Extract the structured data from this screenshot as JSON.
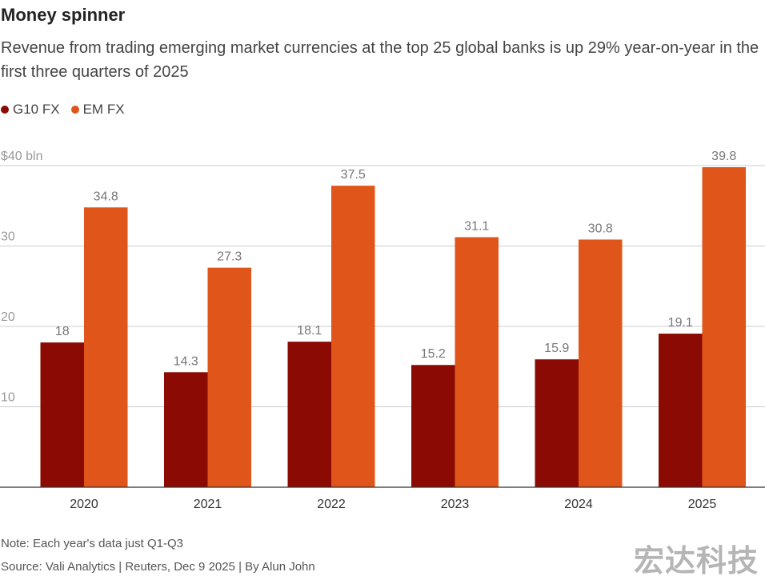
{
  "title": "Money spinner",
  "subtitle": "Revenue from trading emerging market currencies at the top 25 global banks is up 29% year-on-year in the first three quarters of 2025",
  "note": "Note: Each year's data just Q1-Q3",
  "source": "Source: Vali Analytics | Reuters, Dec 9 2025 | By Alun John",
  "watermark": "宏达科技",
  "chart_data": {
    "type": "bar",
    "categories": [
      "2020",
      "2021",
      "2022",
      "2023",
      "2024",
      "2025"
    ],
    "series": [
      {
        "name": "G10 FX",
        "color": "#8b0a03",
        "values": [
          18,
          14.3,
          18.1,
          15.2,
          15.9,
          19.1
        ],
        "labels": [
          "18",
          "14.3",
          "18.1",
          "15.2",
          "15.9",
          "19.1"
        ]
      },
      {
        "name": "EM FX",
        "color": "#e0561a",
        "values": [
          34.8,
          27.3,
          37.5,
          31.1,
          30.8,
          39.8
        ],
        "labels": [
          "34.8",
          "27.3",
          "37.5",
          "31.1",
          "30.8",
          "39.8"
        ]
      }
    ],
    "yticks": [
      10,
      20,
      30,
      40
    ],
    "ytick_labels": [
      "10",
      "20",
      "30",
      "$40 bln"
    ],
    "ylim": [
      0,
      40
    ],
    "grid": true,
    "legend": "top-left"
  }
}
